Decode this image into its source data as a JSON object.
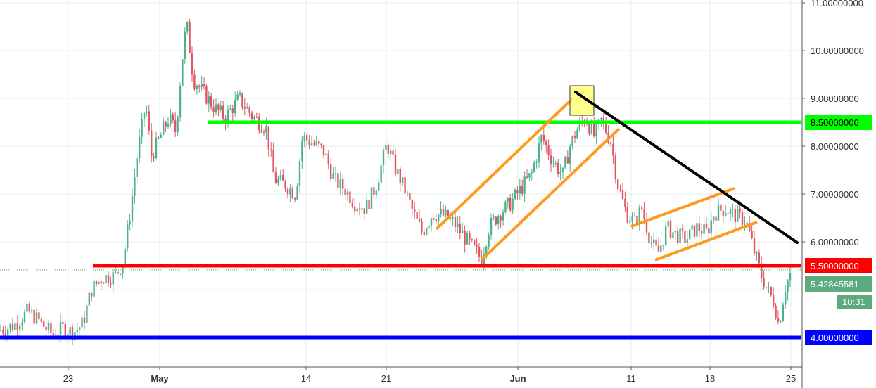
{
  "chart_data": {
    "type": "candlestick",
    "y_axis": {
      "ylim": [
        3.5,
        11.0
      ],
      "tick_labels": [
        "11.00000000",
        "10.00000000",
        "9.00000000",
        "8.00000000",
        "7.00000000",
        "6.00000000"
      ],
      "tick_values": [
        11,
        10,
        9,
        8,
        7,
        6
      ],
      "position": "right"
    },
    "x_axis": {
      "tick_labels": [
        "23",
        "May",
        "14",
        "21",
        "Jun",
        "11",
        "18",
        "25"
      ],
      "bold_labels": [
        "May",
        "Jun"
      ]
    },
    "price_levels": [
      {
        "value": 8.5,
        "label": "8.50000000",
        "color": "#00ff00"
      },
      {
        "value": 5.5,
        "label": "5.50000000",
        "color": "#ff0000"
      },
      {
        "value": 4.0,
        "label": "4.00000000",
        "color": "#0000ff"
      }
    ],
    "current_price": {
      "value": 5.42845581,
      "label": "5.42845581",
      "color": "#5bab7e"
    },
    "countdown": {
      "label": "10:31"
    },
    "colors": {
      "up": "#4bb38a",
      "down": "#e05663",
      "orange": "#ff9a1f",
      "trend": "#000000",
      "highlight": "#ffff66"
    },
    "annotations": [
      {
        "type": "trendline",
        "color": "#000000"
      },
      {
        "type": "rising-channel",
        "color": "#ff9a1f"
      },
      {
        "type": "rising-wedge",
        "color": "#ff9a1f"
      },
      {
        "type": "highlight-box",
        "color": "#ffff66"
      }
    ]
  }
}
